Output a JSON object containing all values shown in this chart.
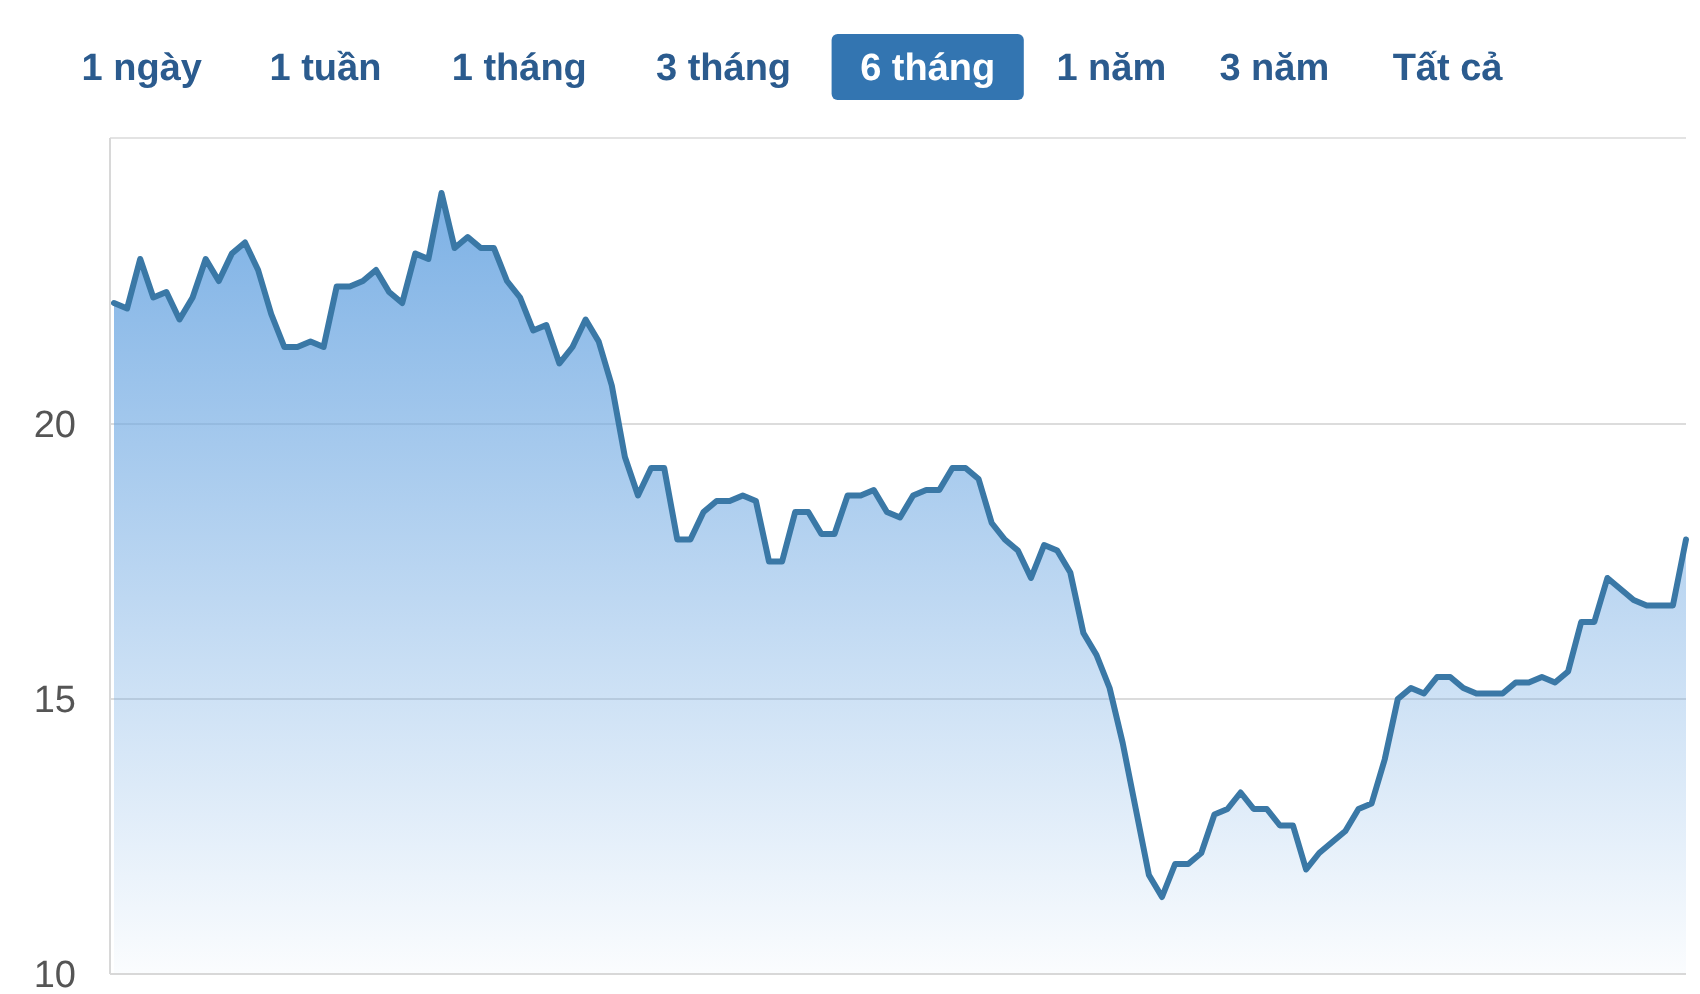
{
  "chart_data": {
    "type": "area",
    "annotations": [
      "1 ngày",
      "1 tuần",
      "1 tháng",
      "3 tháng",
      "6 tháng",
      "1 năm",
      "3 năm",
      "Tất cả"
    ],
    "categories": [
      null,
      null,
      null,
      null,
      null,
      null,
      null,
      null,
      null,
      null,
      null,
      null,
      null,
      null,
      null,
      null,
      null,
      null,
      null,
      null,
      null,
      null,
      null,
      null,
      null,
      null,
      null,
      null,
      null,
      null,
      null,
      null,
      null,
      null,
      null,
      null,
      null,
      null,
      null,
      null,
      null,
      null,
      null,
      null,
      null,
      null,
      null,
      null,
      null,
      null,
      null,
      null,
      null,
      null,
      null,
      null,
      null,
      null,
      null,
      null,
      null,
      null,
      null,
      null,
      null,
      null,
      null,
      null,
      null,
      null,
      null,
      null,
      null,
      null,
      null,
      null,
      null,
      null,
      null,
      null,
      null,
      null,
      null,
      null,
      null,
      null,
      null,
      null,
      null,
      null,
      null,
      null,
      null,
      null,
      null,
      null,
      null,
      null,
      null,
      null,
      null,
      null,
      null,
      null,
      null,
      null,
      null,
      null,
      null,
      null,
      null,
      null,
      null,
      null,
      null,
      null,
      null,
      null,
      null,
      null,
      null
    ],
    "series": [
      {
        "color": "#3a78a6",
        "values": [
          22.2,
          22.1,
          23.0,
          22.3,
          22.4,
          21.9,
          22.3,
          23.0,
          22.6,
          23.1,
          23.3,
          22.8,
          22.0,
          21.4,
          21.4,
          21.5,
          21.4,
          22.5,
          22.5,
          22.6,
          22.8,
          22.4,
          22.2,
          23.1,
          23.0,
          24.2,
          23.2,
          23.4,
          23.2,
          23.2,
          22.6,
          22.3,
          21.7,
          21.8,
          21.1,
          21.4,
          21.9,
          21.5,
          20.7,
          19.4,
          18.7,
          19.2,
          19.2,
          17.9,
          17.9,
          18.4,
          18.6,
          18.6,
          18.7,
          18.6,
          17.5,
          17.5,
          18.4,
          18.4,
          18.0,
          18.0,
          18.7,
          18.7,
          18.8,
          18.4,
          18.3,
          18.7,
          18.8,
          18.8,
          19.2,
          19.2,
          19.0,
          18.2,
          17.9,
          17.7,
          17.2,
          17.8,
          17.7,
          17.3,
          16.2,
          15.8,
          15.2,
          14.2,
          13.0,
          11.8,
          11.4,
          12.0,
          12.0,
          12.2,
          12.9,
          13.0,
          13.3,
          13.0,
          13.0,
          12.7,
          12.7,
          11.9,
          12.2,
          12.4,
          12.6,
          13.0,
          13.1,
          13.9,
          15.0,
          15.2,
          15.1,
          15.4,
          15.4,
          15.2,
          15.1,
          15.1,
          15.1,
          15.3,
          15.3,
          15.4,
          15.3,
          15.5,
          16.4,
          16.4,
          17.2,
          17.0,
          16.8,
          16.7,
          16.7,
          16.7,
          17.9
        ]
      }
    ],
    "ylim": [
      10,
      25.2
    ],
    "yticks": [
      10,
      15,
      20
    ],
    "grid": "y"
  }
}
